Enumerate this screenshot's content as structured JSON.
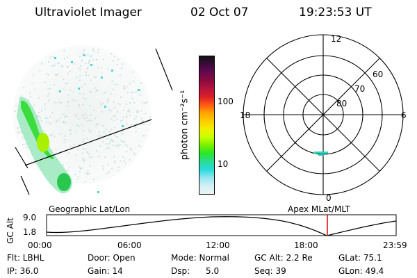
{
  "header": {
    "instrument": "Ultraviolet Imager",
    "date": "02 Oct 07",
    "time": "19:23:53 UT"
  },
  "colorbar": {
    "unit_label": "photon cm⁻²s⁻¹",
    "tick_labels": [
      "100",
      "10"
    ],
    "colors": [
      "#141414",
      "#3c0a3c",
      "#640a50",
      "#8c0a3c",
      "#b4143c",
      "#dc1e28",
      "#ff5a14",
      "#ffa500",
      "#ffcc00",
      "#f0f000",
      "#c8ff00",
      "#78f000",
      "#28e628",
      "#28dc96",
      "#28dcdc",
      "#96e6f0",
      "#d2f0f5",
      "#ebf5f8"
    ]
  },
  "polar_plot": {
    "mlt_labels": {
      "top": "12",
      "bottom": "0",
      "left": "18",
      "right": "6"
    },
    "lat_labels": [
      "60",
      "70",
      "80"
    ]
  },
  "altitude_plot": {
    "left_title": "Geographic Lat/Lon",
    "right_title": "Apex MLat/MLT",
    "ylabel": "GC Alt",
    "y_ticks": [
      "9.0",
      "1.8"
    ],
    "x_ticks": [
      "00:00",
      "06:00",
      "12:00",
      "18:00",
      "23:59"
    ],
    "marker_color": "#e00000"
  },
  "info": {
    "flt": "Flt: LBHL",
    "door": "Door: Open",
    "mode": "Mode: Normal",
    "gc_alt": "GC Alt: 2.2 Re",
    "glat": "GLat:  75.1",
    "ip": "IP: 36.0",
    "gain": "Gain: 14",
    "dsp": "Dsp:      5.0",
    "seq": "Seq: 39",
    "glon": "GLon:  49.4"
  }
}
